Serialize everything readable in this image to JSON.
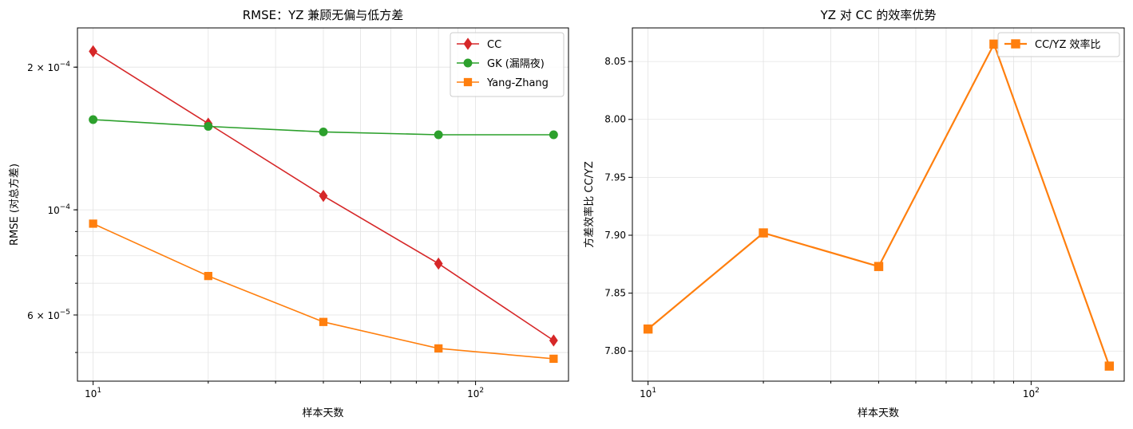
{
  "chart_data": [
    {
      "type": "line",
      "title": "RMSE：YZ 兼顾无偏与低方差",
      "xlabel": "样本天数",
      "ylabel": "RMSE (对总方差)",
      "xscale": "log",
      "yscale": "log",
      "xlim": [
        9.1,
        175
      ],
      "ylim": [
        4.35e-05,
        0.000242
      ],
      "xticks": [
        {
          "value": 10,
          "base": "10",
          "exp": "1"
        },
        {
          "value": 100,
          "base": "10",
          "exp": "2"
        }
      ],
      "yticks": [
        {
          "value": 0.0002,
          "mant": "2 × 10",
          "exp": "−4"
        },
        {
          "value": 0.0001,
          "mant": "10",
          "exp": "−4"
        },
        {
          "value": 6e-05,
          "mant": "6 × 10",
          "exp": "−5"
        }
      ],
      "grid": true,
      "legend_position": "top-right",
      "x": [
        10,
        20,
        40,
        80,
        160
      ],
      "series": [
        {
          "name": "CC",
          "color": "#d62728",
          "marker": "diamond",
          "values": [
            0.000216,
            0.000152,
            0.000107,
            7.7e-05,
            5.3e-05
          ]
        },
        {
          "name": "GK (漏隔夜)",
          "color": "#2ca02c",
          "marker": "circle",
          "values": [
            0.000155,
            0.00015,
            0.000146,
            0.000144,
            0.000144
          ]
        },
        {
          "name": "Yang-Zhang",
          "color": "#ff7f0e",
          "marker": "square",
          "values": [
            9.35e-05,
            7.25e-05,
            5.8e-05,
            5.1e-05,
            4.85e-05
          ]
        }
      ]
    },
    {
      "type": "line",
      "title": "YZ 对 CC 的效率优势",
      "xlabel": "样本天数",
      "ylabel": "方差效率比 CC/YZ",
      "xscale": "log",
      "yscale": "linear",
      "xlim": [
        9.1,
        175
      ],
      "ylim": [
        7.774,
        8.079
      ],
      "xticks": [
        {
          "value": 10,
          "base": "10",
          "exp": "1"
        },
        {
          "value": 100,
          "base": "10",
          "exp": "2"
        }
      ],
      "yticks": [
        {
          "value": 7.8,
          "label": "7.80"
        },
        {
          "value": 7.85,
          "label": "7.85"
        },
        {
          "value": 7.9,
          "label": "7.90"
        },
        {
          "value": 7.95,
          "label": "7.95"
        },
        {
          "value": 8.0,
          "label": "8.00"
        },
        {
          "value": 8.05,
          "label": "8.05"
        }
      ],
      "grid": true,
      "legend_position": "top-right",
      "x": [
        10,
        20,
        40,
        80,
        160
      ],
      "series": [
        {
          "name": "CC/YZ 效率比",
          "color": "#ff7f0e",
          "marker": "square",
          "values": [
            7.819,
            7.902,
            7.873,
            8.065,
            7.787
          ]
        }
      ]
    }
  ]
}
